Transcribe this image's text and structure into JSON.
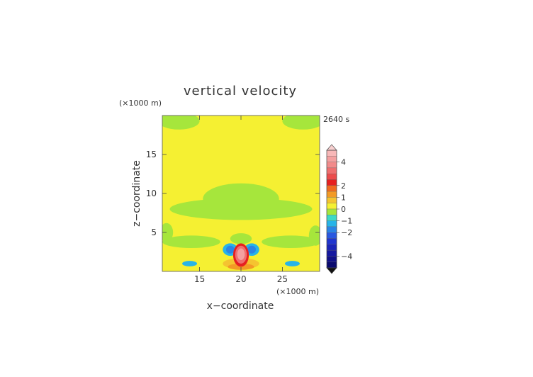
{
  "chart_data": {
    "type": "heatmap",
    "title": "vertical velocity",
    "time_label": "2640 s",
    "xlabel": "x−coordinate",
    "ylabel": "z−coordinate",
    "x_unit_label": "(×1000 m)",
    "y_unit_label": "(×1000 m)",
    "xlim": [
      10.5,
      29.5
    ],
    "ylim": [
      0,
      20
    ],
    "x_ticks": [
      15,
      20,
      25
    ],
    "x_tick_labels": [
      "15",
      "20",
      "25"
    ],
    "y_ticks": [
      5,
      10,
      15
    ],
    "y_tick_labels": [
      "5",
      "10",
      "15"
    ],
    "colorbar": {
      "range": [
        -5,
        5
      ],
      "tick_values": [
        4,
        2,
        1,
        0,
        -1,
        -2,
        -4
      ],
      "tick_labels": [
        "4",
        "2",
        "1",
        "0",
        "−1",
        "−2",
        "−4"
      ],
      "bands": [
        {
          "from": 4.5,
          "to": 5.0,
          "color": "#f8b8b8"
        },
        {
          "from": 4.0,
          "to": 4.5,
          "color": "#f4a0a0"
        },
        {
          "from": 3.5,
          "to": 4.0,
          "color": "#f28a8a"
        },
        {
          "from": 3.0,
          "to": 3.5,
          "color": "#ef6f6f"
        },
        {
          "from": 2.5,
          "to": 3.0,
          "color": "#ec4c4c"
        },
        {
          "from": 2.0,
          "to": 2.5,
          "color": "#e62020"
        },
        {
          "from": 1.5,
          "to": 2.0,
          "color": "#f06a20"
        },
        {
          "from": 1.0,
          "to": 1.5,
          "color": "#f39a25"
        },
        {
          "from": 0.5,
          "to": 1.0,
          "color": "#f5c430"
        },
        {
          "from": 0.0,
          "to": 0.5,
          "color": "#f5f032"
        },
        {
          "from": -0.5,
          "to": 0.0,
          "color": "#a6e63c"
        },
        {
          "from": -1.0,
          "to": -0.5,
          "color": "#3dd9c6"
        },
        {
          "from": -1.5,
          "to": -1.0,
          "color": "#27b4e8"
        },
        {
          "from": -2.0,
          "to": -1.5,
          "color": "#2a84e6"
        },
        {
          "from": -2.5,
          "to": -2.0,
          "color": "#2a58e0"
        },
        {
          "from": -3.0,
          "to": -2.5,
          "color": "#2035cf"
        },
        {
          "from": -3.5,
          "to": -3.0,
          "color": "#1a24b8"
        },
        {
          "from": -4.0,
          "to": -3.5,
          "color": "#1518a0"
        },
        {
          "from": -4.5,
          "to": -4.0,
          "color": "#101088"
        },
        {
          "from": -5.0,
          "to": -4.5,
          "color": "#0a0a6e"
        }
      ],
      "over_color": "#f8d0d0",
      "under_color": "#111111"
    },
    "background_value": 0.2,
    "regions": [
      {
        "kind": "ellipse",
        "cx": 12.5,
        "cz": 19.3,
        "rx": 2.5,
        "rz": 1.1,
        "value": -0.3
      },
      {
        "kind": "ellipse",
        "cx": 27.5,
        "cz": 19.3,
        "rx": 2.5,
        "rz": 1.1,
        "value": -0.3
      },
      {
        "kind": "ellipse",
        "cx": 20.0,
        "cz": 8.0,
        "rx": 8.6,
        "rz": 1.4,
        "value": -0.3
      },
      {
        "kind": "ellipse",
        "cx": 20.0,
        "cz": 9.3,
        "rx": 4.6,
        "rz": 2.0,
        "value": -0.3
      },
      {
        "kind": "ellipse",
        "cx": 14.0,
        "cz": 3.8,
        "rx": 3.5,
        "rz": 0.8,
        "value": -0.3
      },
      {
        "kind": "ellipse",
        "cx": 26.0,
        "cz": 3.8,
        "rx": 3.5,
        "rz": 0.8,
        "value": -0.3
      },
      {
        "kind": "ellipse",
        "cx": 11.0,
        "cz": 5.0,
        "rx": 0.8,
        "rz": 1.2,
        "value": -0.3
      },
      {
        "kind": "ellipse",
        "cx": 29.0,
        "cz": 4.6,
        "rx": 0.8,
        "rz": 1.3,
        "value": -0.3
      },
      {
        "kind": "ellipse",
        "cx": 20.0,
        "cz": 4.2,
        "rx": 1.3,
        "rz": 0.7,
        "value": -0.3
      },
      {
        "kind": "ellipse",
        "cx": 13.8,
        "cz": 1.0,
        "rx": 0.9,
        "rz": 0.35,
        "value": -1.2
      },
      {
        "kind": "ellipse",
        "cx": 26.2,
        "cz": 1.0,
        "rx": 0.9,
        "rz": 0.35,
        "value": -1.2
      },
      {
        "kind": "ellipse",
        "cx": 20.0,
        "cz": 1.0,
        "rx": 2.2,
        "rz": 0.7,
        "value": 0.7
      },
      {
        "kind": "ellipse",
        "cx": 20.0,
        "cz": 0.6,
        "rx": 1.6,
        "rz": 0.4,
        "value": 1.2
      },
      {
        "kind": "ellipse",
        "cx": 18.7,
        "cz": 2.8,
        "rx": 0.9,
        "rz": 0.8,
        "value": -1.2
      },
      {
        "kind": "ellipse",
        "cx": 21.3,
        "cz": 2.8,
        "rx": 0.9,
        "rz": 0.8,
        "value": -1.2
      },
      {
        "kind": "ellipse",
        "cx": 18.7,
        "cz": 2.8,
        "rx": 0.5,
        "rz": 0.5,
        "value": -1.7
      },
      {
        "kind": "ellipse",
        "cx": 21.3,
        "cz": 2.8,
        "rx": 0.5,
        "rz": 0.5,
        "value": -1.7
      },
      {
        "kind": "ellipse",
        "cx": 20.0,
        "cz": 2.1,
        "rx": 0.95,
        "rz": 1.5,
        "value": 2.2
      },
      {
        "kind": "ellipse",
        "cx": 20.0,
        "cz": 2.15,
        "rx": 0.7,
        "rz": 1.15,
        "value": 3.2
      },
      {
        "kind": "ellipse",
        "cx": 20.0,
        "cz": 2.2,
        "rx": 0.45,
        "rz": 0.75,
        "value": 4.2
      }
    ]
  }
}
